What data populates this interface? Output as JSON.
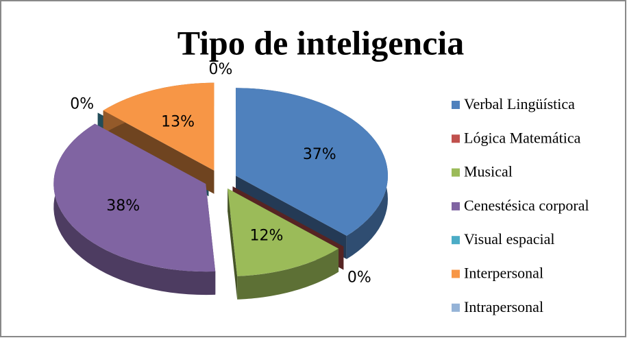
{
  "chart_data": {
    "type": "pie",
    "title": "Tipo de inteligencia",
    "categories": [
      "Verbal Lingüística",
      "Lógica Matemática",
      "Musical",
      "Cenestésica corporal",
      "Visual espacial",
      "Interpersonal",
      "Intrapersonal"
    ],
    "values": [
      37,
      0,
      12,
      38,
      0,
      13,
      0
    ],
    "value_labels": [
      "37%",
      "0%",
      "12%",
      "38%",
      "0%",
      "13%",
      "0%"
    ],
    "colors": [
      "#4f81bd",
      "#c0504d",
      "#9bbb59",
      "#8064a2",
      "#4bacc6",
      "#f79646",
      "#95b3d7"
    ],
    "legend": "right"
  }
}
